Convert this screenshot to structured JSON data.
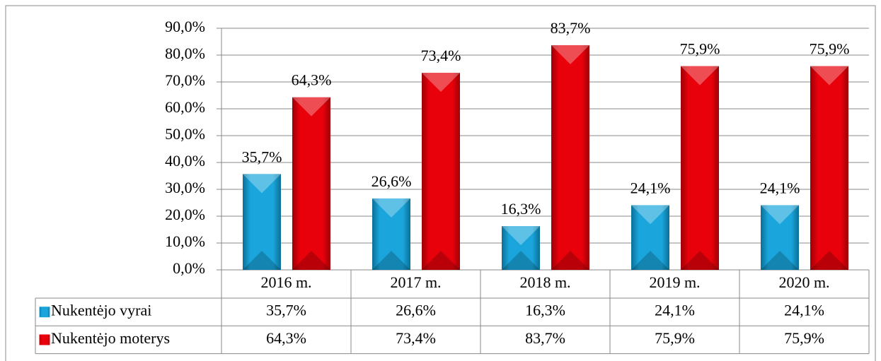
{
  "chart_data": {
    "type": "bar",
    "categories": [
      "2016 m.",
      "2017 m.",
      "2018 m.",
      "2019 m.",
      "2020 m."
    ],
    "series": [
      {
        "name": "Nukentėjo vyrai",
        "color": "#1aa6dc",
        "values": [
          35.7,
          26.6,
          16.3,
          24.1,
          24.1
        ],
        "value_labels": [
          "35,7%",
          "26,6%",
          "16,3%",
          "24,1%",
          "24,1%"
        ]
      },
      {
        "name": "Nukentėjo moterys",
        "color": "#e8000b",
        "values": [
          64.3,
          73.4,
          83.7,
          75.9,
          75.9
        ],
        "value_labels": [
          "64,3%",
          "73,4%",
          "83,7%",
          "75,9%",
          "75,9%"
        ]
      }
    ],
    "ylim": [
      0,
      90
    ],
    "yticks": [
      {
        "value": 0,
        "label": "0,0%"
      },
      {
        "value": 10,
        "label": "10,0%"
      },
      {
        "value": 20,
        "label": "20,0%"
      },
      {
        "value": 30,
        "label": "30,0%"
      },
      {
        "value": 40,
        "label": "40,0%"
      },
      {
        "value": 50,
        "label": "50,0%"
      },
      {
        "value": 60,
        "label": "60,0%"
      },
      {
        "value": 70,
        "label": "70,0%"
      },
      {
        "value": 80,
        "label": "80,0%"
      },
      {
        "value": 90,
        "label": "90,0%"
      }
    ],
    "grid": true,
    "data_table": true
  }
}
